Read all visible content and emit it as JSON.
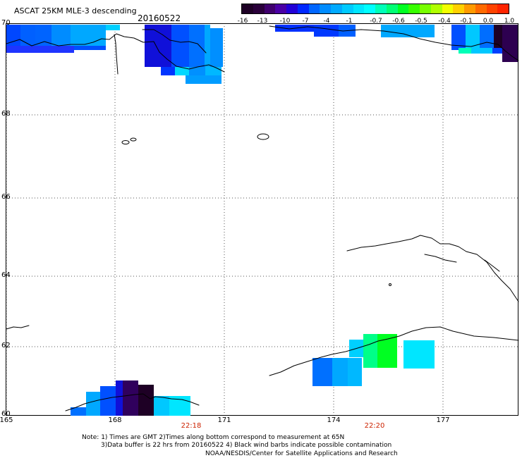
{
  "header": {
    "title": "ASCAT 25KM MLE-3 descending",
    "date": "20160522"
  },
  "colorbar": {
    "labels": [
      "-16",
      "-13",
      "-10",
      "-7",
      "-4",
      "-1",
      "-0.7",
      "-0.6",
      "-0.5",
      "-0.4",
      "-0.1",
      "0.0",
      "1.0"
    ],
    "colors": [
      "#1e0025",
      "#2a003a",
      "#3f006d",
      "#4a00a5",
      "#2200d6",
      "#0028ff",
      "#0066ff",
      "#008cff",
      "#00aaff",
      "#00caff",
      "#00e6ff",
      "#00ffff",
      "#00ffb8",
      "#00ff74",
      "#00ff22",
      "#37ff00",
      "#78ff00",
      "#b0ff00",
      "#f2ff00",
      "#ffd000",
      "#ff9a00",
      "#ff6a00",
      "#ff4300",
      "#ff2400"
    ]
  },
  "axes": {
    "lat_labels": [
      "70",
      "68",
      "66",
      "64",
      "62",
      "60"
    ],
    "lon_labels": [
      "165",
      "168",
      "171",
      "174",
      "177"
    ]
  },
  "times": [
    "22:18",
    "22:20"
  ],
  "notes": {
    "line1": "Note: 1) Times are GMT 2)Times along bottom correspond to measurement at 65N",
    "line2": "3)Data buffer is 22 hrs from 20160522 4) Black wind barbs indicate possible contamination",
    "line3": "NOAA/NESDIS/Center for Satellite Applications and Research"
  }
}
